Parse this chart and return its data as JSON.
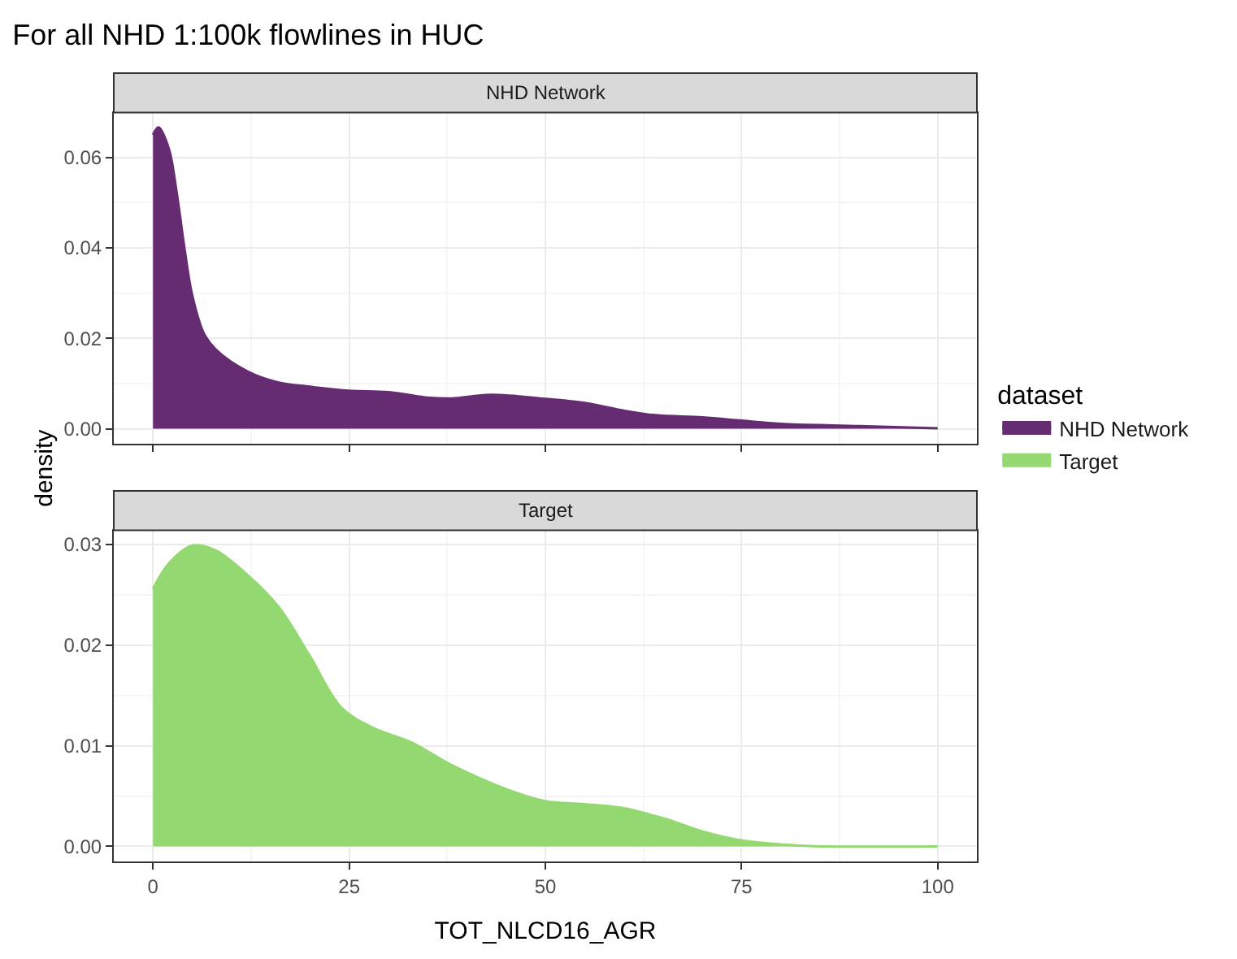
{
  "chart_data": [
    {
      "type": "area",
      "title": "For all NHD 1:100k flowlines in HUC",
      "subtitle": "NHD Network",
      "ylabel": "density",
      "legend_title": "dataset",
      "legend": "right",
      "grid": true,
      "tick_labels": "y",
      "xlim": [
        -5,
        105
      ],
      "ylim": [
        -0.0033,
        0.0699
      ],
      "yticks": [
        {
          "value": 0,
          "label": "0.00"
        },
        {
          "value": 0.02,
          "label": "0.02"
        },
        {
          "value": 0.04,
          "label": "0.04"
        },
        {
          "value": 0.06,
          "label": "0.06"
        }
      ],
      "x": [
        0,
        0.7,
        2,
        3,
        4,
        5,
        6.5,
        8,
        12,
        16,
        20,
        25,
        30,
        35,
        38,
        43,
        50,
        55,
        60,
        64,
        70,
        75,
        80,
        90,
        100
      ],
      "series": [
        {
          "name": "NHD Network",
          "color": "#652c72",
          "values": [
            0.065,
            0.0666,
            0.062,
            0.0524,
            0.04,
            0.0295,
            0.021,
            0.0175,
            0.0127,
            0.0102,
            0.0093,
            0.0084,
            0.0081,
            0.0069,
            0.0067,
            0.0075,
            0.0066,
            0.0057,
            0.004,
            0.003,
            0.0025,
            0.0018,
            0.0011,
            0.0006,
            0.0001
          ]
        }
      ]
    },
    {
      "type": "area",
      "subtitle": "Target",
      "xlabel": "TOT_NLCD16_AGR",
      "grid": true,
      "xlim": [
        -5,
        105
      ],
      "xticks": [
        0,
        25,
        50,
        75,
        100
      ],
      "ylim": [
        -0.0015,
        0.0314
      ],
      "yticks": [
        {
          "value": 0,
          "label": "0.00"
        },
        {
          "value": 0.01,
          "label": "0.01"
        },
        {
          "value": 0.02,
          "label": "0.02"
        },
        {
          "value": 0.03,
          "label": "0.03"
        }
      ],
      "x": [
        0,
        2,
        5,
        8,
        12,
        16,
        20,
        24,
        28,
        33,
        38,
        45,
        50,
        55,
        60,
        65,
        70,
        75,
        80,
        85,
        100
      ],
      "series": [
        {
          "name": "Target",
          "color": "#93d871",
          "values": [
            0.0256,
            0.0281,
            0.0299,
            0.0294,
            0.027,
            0.0238,
            0.0189,
            0.0138,
            0.0118,
            0.0103,
            0.0081,
            0.0057,
            0.0045,
            0.0042,
            0.0038,
            0.0028,
            0.0015,
            0.0006,
            0.0002,
            0.0,
            0.0
          ]
        }
      ]
    }
  ]
}
